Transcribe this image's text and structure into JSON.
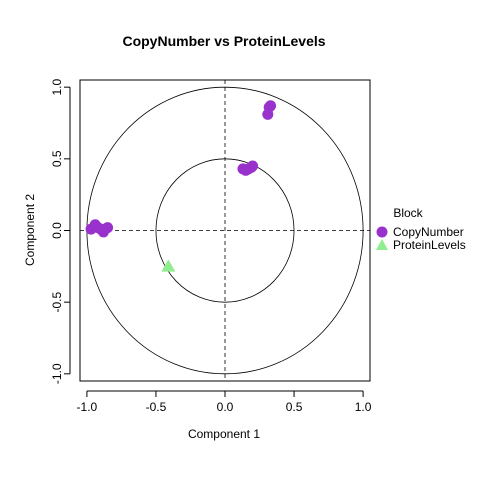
{
  "chart_data": {
    "type": "scatter",
    "title": "CopyNumber vs ProteinLevels",
    "xlabel": "Component  1",
    "ylabel": "Component 2",
    "xlim": [
      -1.05,
      1.05
    ],
    "ylim": [
      -1.05,
      1.05
    ],
    "xticks": [
      -1.0,
      -0.5,
      0.0,
      0.5,
      1.0
    ],
    "yticks": [
      -1.0,
      -0.5,
      0.0,
      0.5,
      1.0
    ],
    "xtick_labels": [
      "-1.0",
      "-0.5",
      "0.0",
      "0.5",
      "1.0"
    ],
    "ytick_labels": [
      "-1.0",
      "-0.5",
      "0.0",
      "0.5",
      "1.0"
    ],
    "circles": [
      1.0,
      0.5
    ],
    "reference_lines": [
      0,
      0
    ],
    "grid": false,
    "legend": {
      "title": "Block",
      "placement": "right",
      "entries": [
        {
          "name": "CopyNumber",
          "color": "#9932CC",
          "marker": "circle"
        },
        {
          "name": "ProteinLevels",
          "color": "#90EE90",
          "marker": "triangle"
        }
      ]
    },
    "series": [
      {
        "name": "CopyNumber",
        "color": "#9932CC",
        "marker": "circle",
        "points": [
          [
            -0.97,
            0.01
          ],
          [
            -0.94,
            0.04
          ],
          [
            -0.92,
            0.02
          ],
          [
            -0.9,
            0.01
          ],
          [
            -0.88,
            -0.01
          ],
          [
            -0.85,
            0.02
          ],
          [
            -0.87,
            0.01
          ],
          [
            0.15,
            0.42
          ],
          [
            0.17,
            0.43
          ],
          [
            0.19,
            0.44
          ],
          [
            0.2,
            0.45
          ],
          [
            0.13,
            0.43
          ],
          [
            0.31,
            0.81
          ],
          [
            0.32,
            0.86
          ],
          [
            0.33,
            0.87
          ]
        ]
      },
      {
        "name": "ProteinLevels",
        "color": "#90EE90",
        "marker": "triangle",
        "points": [
          [
            -0.41,
            -0.25
          ]
        ]
      }
    ]
  }
}
